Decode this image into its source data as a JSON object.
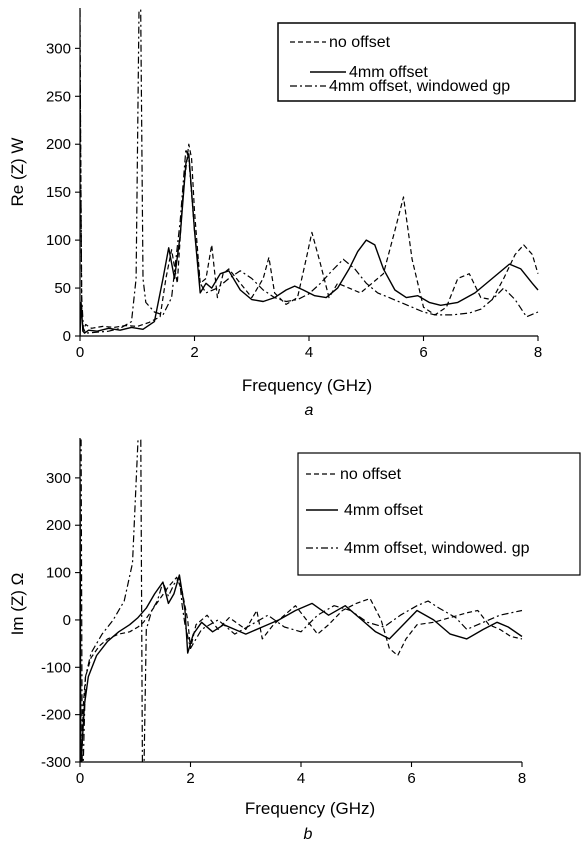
{
  "chart_data": [
    {
      "type": "line",
      "panel_label": "a",
      "xlabel": "Frequency (GHz)",
      "ylabel": "Re (Z) W",
      "xlim": [
        0,
        8
      ],
      "ylim": [
        0,
        340
      ],
      "xticks": [
        "0",
        "2",
        "4",
        "6",
        "8"
      ],
      "yticks": [
        "0",
        "50",
        "100",
        "150",
        "200",
        "250",
        "300"
      ],
      "grid": false,
      "legend_position": "top-right",
      "series": [
        {
          "name": "no offset",
          "style": "dashed",
          "x": [
            0,
            0.03,
            0.05,
            0.1,
            0.2,
            0.4,
            0.6,
            0.8,
            1.0,
            1.2,
            1.4,
            1.5,
            1.6,
            1.7,
            1.8,
            1.9,
            1.95,
            2.0,
            2.1,
            2.2,
            2.3,
            2.4,
            2.5,
            2.6,
            2.8,
            3.0,
            3.2,
            3.3,
            3.4,
            3.6,
            3.8,
            3.95,
            4.05,
            4.2,
            4.35,
            4.5,
            4.7,
            4.9,
            5.1,
            5.3,
            5.5,
            5.65,
            5.8,
            6.0,
            6.2,
            6.4,
            6.6,
            6.8,
            7.0,
            7.2,
            7.4,
            7.6,
            7.75,
            7.9,
            8.0
          ],
          "values": [
            300,
            30,
            5,
            12,
            8,
            10,
            9,
            11,
            10,
            14,
            20,
            60,
            90,
            55,
            150,
            200,
            185,
            130,
            55,
            60,
            95,
            40,
            65,
            70,
            55,
            40,
            60,
            82,
            45,
            33,
            40,
            80,
            108,
            75,
            40,
            55,
            50,
            45,
            55,
            65,
            110,
            145,
            80,
            30,
            22,
            30,
            60,
            65,
            40,
            38,
            60,
            85,
            95,
            85,
            65
          ]
        },
        {
          "name": "4mm offset",
          "style": "solid",
          "x": [
            0,
            0.02,
            0.05,
            0.08,
            0.15,
            0.3,
            0.5,
            0.7,
            0.9,
            1.1,
            1.3,
            1.45,
            1.55,
            1.65,
            1.75,
            1.85,
            1.9,
            2.0,
            2.1,
            2.2,
            2.3,
            2.45,
            2.6,
            2.8,
            3.0,
            3.2,
            3.4,
            3.6,
            3.75,
            3.9,
            4.1,
            4.3,
            4.5,
            4.7,
            4.85,
            5.0,
            5.15,
            5.3,
            5.5,
            5.7,
            5.9,
            6.1,
            6.3,
            6.6,
            6.9,
            7.2,
            7.5,
            7.7,
            7.9,
            8.0
          ],
          "values": [
            0,
            35,
            5,
            3,
            6,
            5,
            8,
            6,
            9,
            7,
            15,
            60,
            92,
            60,
            105,
            180,
            190,
            110,
            45,
            55,
            50,
            65,
            68,
            48,
            38,
            36,
            40,
            48,
            52,
            48,
            42,
            40,
            50,
            70,
            88,
            100,
            95,
            70,
            48,
            40,
            42,
            35,
            32,
            35,
            45,
            60,
            75,
            70,
            55,
            48
          ]
        },
        {
          "name": "4mm offset, windowed gp",
          "style": "dash-dot",
          "x": [
            0,
            0.01,
            0.03,
            0.06,
            0.1,
            0.3,
            0.5,
            0.7,
            0.9,
            0.98,
            1.03,
            1.06,
            1.1,
            1.15,
            1.3,
            1.45,
            1.6,
            1.75,
            1.85,
            1.9,
            2.0,
            2.1,
            2.2,
            2.4,
            2.6,
            2.8,
            3.0,
            3.2,
            3.4,
            3.6,
            3.8,
            4.0,
            4.2,
            4.4,
            4.6,
            4.8,
            5.0,
            5.2,
            5.4,
            5.6,
            5.8,
            6.0,
            6.2,
            6.5,
            6.8,
            7.0,
            7.2,
            7.4,
            7.6,
            7.8,
            8.0
          ],
          "values": [
            340,
            200,
            40,
            8,
            3,
            4,
            5,
            8,
            15,
            60,
            340,
            340,
            60,
            35,
            25,
            22,
            40,
            120,
            195,
            185,
            110,
            55,
            45,
            50,
            60,
            68,
            60,
            48,
            40,
            36,
            38,
            44,
            55,
            68,
            80,
            70,
            55,
            45,
            40,
            35,
            30,
            25,
            22,
            22,
            24,
            28,
            38,
            50,
            38,
            20,
            25
          ]
        }
      ]
    },
    {
      "type": "line",
      "panel_label": "b",
      "xlabel": "Frequency (GHz)",
      "ylabel": "Im (Z) Ω",
      "xlim": [
        0,
        8
      ],
      "ylim": [
        -300,
        380
      ],
      "xticks": [
        "0",
        "2",
        "4",
        "6",
        "8"
      ],
      "yticks": [
        "-300",
        "-200",
        "-100",
        "0",
        "100",
        "200",
        "300"
      ],
      "grid": false,
      "legend_position": "top-right",
      "series": [
        {
          "name": "no offset",
          "style": "dashed",
          "x": [
            0.03,
            0.06,
            0.1,
            0.2,
            0.35,
            0.5,
            0.7,
            0.9,
            1.05,
            1.15,
            1.3,
            1.45,
            1.6,
            1.75,
            1.85,
            1.95,
            2.0,
            2.1,
            2.3,
            2.5,
            2.7,
            3.0,
            3.2,
            3.3,
            3.5,
            3.7,
            3.9,
            4.1,
            4.3,
            4.5,
            4.75,
            5.0,
            5.25,
            5.45,
            5.6,
            5.75,
            5.9,
            6.1,
            6.4,
            6.7,
            7.0,
            7.2,
            7.4,
            7.6,
            7.8,
            8.0
          ],
          "values": [
            -300,
            -180,
            -120,
            -80,
            -55,
            -40,
            -30,
            -25,
            -15,
            -5,
            20,
            45,
            70,
            90,
            60,
            0,
            -60,
            -10,
            10,
            -20,
            5,
            -20,
            20,
            -40,
            -10,
            10,
            30,
            0,
            -30,
            -10,
            20,
            35,
            45,
            0,
            -60,
            -75,
            -40,
            -10,
            -5,
            5,
            15,
            20,
            -10,
            -20,
            -35,
            -40
          ]
        },
        {
          "name": "4mm offset",
          "style": "solid",
          "x": [
            0,
            0.015,
            0.04,
            0.08,
            0.15,
            0.3,
            0.5,
            0.7,
            0.9,
            1.05,
            1.2,
            1.35,
            1.5,
            1.6,
            1.7,
            1.8,
            1.9,
            1.95,
            2.05,
            2.2,
            2.4,
            2.6,
            2.8,
            3.0,
            3.3,
            3.6,
            3.9,
            4.2,
            4.5,
            4.8,
            5.1,
            5.35,
            5.6,
            5.85,
            6.1,
            6.4,
            6.7,
            7.0,
            7.3,
            7.55,
            7.75,
            8.0
          ],
          "values": [
            300,
            -300,
            -260,
            -180,
            -120,
            -75,
            -45,
            -25,
            -10,
            5,
            25,
            55,
            80,
            35,
            55,
            95,
            20,
            -70,
            -30,
            -5,
            -25,
            -10,
            -20,
            -30,
            -15,
            0,
            20,
            35,
            10,
            30,
            0,
            -25,
            -40,
            -10,
            20,
            0,
            -30,
            -40,
            -20,
            -5,
            -15,
            -35
          ]
        },
        {
          "name": "4mm offset, windowed. gp",
          "style": "dash-dot",
          "x": [
            0.005,
            0.02,
            0.04,
            0.06,
            0.1,
            0.2,
            0.4,
            0.6,
            0.8,
            0.95,
            1.05,
            1.1,
            1.13,
            1.16,
            1.2,
            1.3,
            1.4,
            1.5,
            1.6,
            1.7,
            1.8,
            1.85,
            1.9,
            2.0,
            2.2,
            2.5,
            2.8,
            3.1,
            3.4,
            3.7,
            4.0,
            4.3,
            4.6,
            4.9,
            5.2,
            5.5,
            5.8,
            6.1,
            6.3,
            6.5,
            6.8,
            7.0,
            7.3,
            7.6,
            8.0
          ],
          "values": [
            380,
            380,
            -300,
            -300,
            -120,
            -70,
            -30,
            0,
            40,
            120,
            380,
            380,
            -300,
            -300,
            -20,
            20,
            40,
            80,
            50,
            75,
            90,
            30,
            -10,
            -60,
            -20,
            0,
            -30,
            -10,
            10,
            -15,
            -25,
            10,
            30,
            20,
            -5,
            -15,
            10,
            30,
            40,
            25,
            5,
            -20,
            -5,
            10,
            20
          ]
        }
      ]
    }
  ]
}
